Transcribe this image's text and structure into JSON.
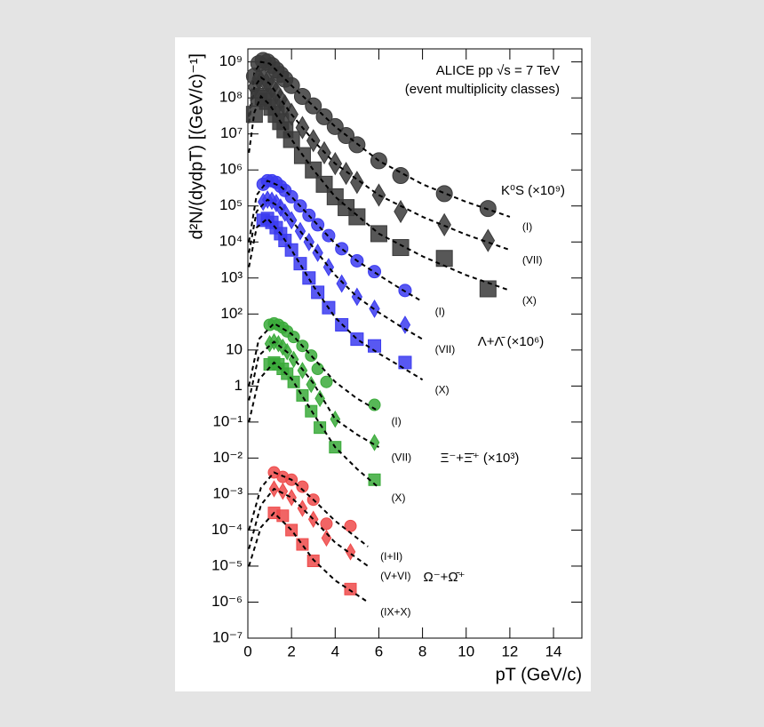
{
  "chart_data": {
    "type": "scatter",
    "annotations": [
      "ALICE pp √s = 7 TeV",
      "(event multiplicity classes)"
    ],
    "xlabel": "pT (GeV/c)",
    "ylabel": "d²N/(dydpT) [(GeV/c)⁻¹]",
    "log_y": true,
    "xlim": [
      0,
      15.3
    ],
    "ylim": [
      1e-07,
      2300000000.0
    ],
    "xticks": [
      0,
      2,
      4,
      6,
      8,
      10,
      12,
      14
    ],
    "yticks": [
      {
        "value": 1000000000.0,
        "label": "10⁹"
      },
      {
        "value": 100000000.0,
        "label": "10⁸"
      },
      {
        "value": 10000000.0,
        "label": "10⁷"
      },
      {
        "value": 1000000.0,
        "label": "10⁶"
      },
      {
        "value": 100000.0,
        "label": "10⁵"
      },
      {
        "value": 10000.0,
        "label": "10⁴"
      },
      {
        "value": 1000.0,
        "label": "10³"
      },
      {
        "value": 100.0,
        "label": "10²"
      },
      10,
      1,
      {
        "value": 0.1,
        "label": "10⁻¹"
      },
      {
        "value": 0.01,
        "label": "10⁻²"
      },
      {
        "value": 0.001,
        "label": "10⁻³"
      },
      {
        "value": 0.0001,
        "label": "10⁻⁴"
      },
      {
        "value": 1e-05,
        "label": "10⁻⁵"
      },
      {
        "value": 1e-06,
        "label": "10⁻⁶"
      },
      {
        "value": 1e-07,
        "label": "10⁻⁷"
      }
    ],
    "groups": [
      {
        "label": "K⁰S (×10⁹)",
        "color": "#3a3a3a",
        "fit_x": [
          0.05,
          0.3,
          0.6,
          1,
          2,
          3,
          4,
          6,
          8,
          10,
          12
        ],
        "series": [
          {
            "name": "(I)",
            "marker": "circle",
            "x": [
              0.3,
              0.5,
              0.7,
              0.9,
              1.1,
              1.3,
              1.5,
              1.7,
              2.0,
              2.5,
              3.0,
              3.5,
              4.0,
              4.5,
              5.0,
              6.0,
              7.0,
              9.0,
              11.0
            ],
            "values": [
              400000000.0,
              900000000.0,
              1100000000.0,
              1000000000.0,
              800000000.0,
              600000000.0,
              450000000.0,
              330000000.0,
              220000000.0,
              110000000.0,
              60000000.0,
              30000000.0,
              16000000.0,
              9000000.0,
              5000000.0,
              1800000.0,
              700000.0,
              220000.0,
              85000.0
            ],
            "fit_values": [
              30000000.0,
              500000000.0,
              1000000000.0,
              900000000.0,
              220000000.0,
              60000000.0,
              16000000.0,
              1800000.0,
              400000.0,
              130000.0,
              50000.0
            ]
          },
          {
            "name": "(VII)",
            "marker": "diamond",
            "x": [
              0.3,
              0.5,
              0.7,
              0.9,
              1.1,
              1.3,
              1.5,
              1.7,
              2.0,
              2.5,
              3.0,
              3.5,
              4.0,
              4.5,
              5.0,
              6.0,
              7.0,
              9.0,
              11.0
            ],
            "values": [
              200000000.0,
              350000000.0,
              350000000.0,
              280000000.0,
              200000000.0,
              140000000.0,
              90000000.0,
              60000000.0,
              35000000.0,
              15000000.0,
              6500000.0,
              3000000.0,
              1500000.0,
              800000.0,
              450000.0,
              200000.0,
              70000.0,
              30000.0,
              11000.0
            ],
            "fit_values": [
              20000000.0,
              200000000.0,
              370000000.0,
              250000000.0,
              35000000.0,
              6500000.0,
              1500000.0,
              200000.0,
              50000.0,
              16000.0,
              6000.0
            ]
          },
          {
            "name": "(X)",
            "marker": "square",
            "x": [
              0.3,
              0.5,
              0.7,
              0.9,
              1.1,
              1.3,
              1.5,
              1.7,
              2.0,
              2.5,
              3.0,
              3.5,
              4.0,
              4.5,
              5.0,
              6.0,
              7.0,
              9.0,
              11.0
            ],
            "values": [
              35000000.0,
              100000000.0,
              110000000.0,
              80000000.0,
              55000000.0,
              35000000.0,
              22000000.0,
              13000000.0,
              7000000.0,
              2500000.0,
              1000000.0,
              400000.0,
              180000.0,
              90000.0,
              50000.0,
              17000.0,
              7000.0,
              3500.0,
              500
            ],
            "fit_values": [
              3000000.0,
              40000000.0,
              110000000.0,
              65000000.0,
              7000000.0,
              1000000.0,
              180000.0,
              17000.0,
              4000.0,
              1200.0,
              450
            ]
          }
        ]
      },
      {
        "label": "Λ+Λ̄ (×10⁶)",
        "color": "#3b3bf0",
        "fit_x": [
          0.05,
          0.4,
          0.9,
          1.5,
          2,
          3,
          4,
          5,
          6,
          7,
          8
        ],
        "series": [
          {
            "name": "(I)",
            "marker": "circle",
            "x": [
              0.7,
              0.9,
              1.1,
              1.3,
              1.5,
              1.7,
              2.0,
              2.4,
              2.8,
              3.2,
              3.7,
              4.3,
              5.0,
              5.8,
              7.2
            ],
            "values": [
              400000.0,
              500000.0,
              500000.0,
              450000.0,
              350000.0,
              270000.0,
              180000.0,
              100000.0,
              55000.0,
              30000.0,
              15000.0,
              6500.0,
              3000.0,
              1500.0,
              450
            ],
            "fit_values": [
              10000.0,
              200000.0,
              500000.0,
              350000.0,
              180000.0,
              40000.0,
              9000.0,
              3000.0,
              1200.0,
              500,
              220
            ]
          },
          {
            "name": "(VII)",
            "marker": "diamond",
            "x": [
              0.7,
              0.9,
              1.1,
              1.3,
              1.5,
              1.7,
              2.0,
              2.4,
              2.8,
              3.2,
              3.7,
              4.3,
              5.0,
              5.8,
              7.2
            ],
            "values": [
              130000.0,
              150000.0,
              140000.0,
              120000.0,
              90000.0,
              65000.0,
              40000.0,
              20000.0,
              10000.0,
              5000.0,
              2000.0,
              700,
              300,
              140,
              50
            ],
            "fit_values": [
              5000.0,
              70000.0,
              150000.0,
              90000.0,
              40000.0,
              7000.0,
              1200.0,
              300,
              110,
              45,
              20
            ]
          },
          {
            "name": "(X)",
            "marker": "square",
            "x": [
              0.7,
              0.9,
              1.1,
              1.3,
              1.5,
              1.7,
              2.0,
              2.4,
              2.8,
              3.2,
              3.7,
              4.3,
              5.0,
              5.8,
              7.2
            ],
            "values": [
              40000.0,
              45000.0,
              35000.0,
              25000.0,
              17000.0,
              11000.0,
              6000.0,
              2500.0,
              1000.0,
              400,
              150,
              50,
              20,
              13,
              4.5
            ],
            "fit_values": [
              2000.0,
              25000.0,
              45000.0,
              17000.0,
              6000.0,
              600,
              80,
              20,
              8,
              3.5,
              1.5
            ]
          }
        ]
      },
      {
        "label": "Ξ⁻+Ξ̄⁺ (×10³)",
        "color": "#3aaa3a",
        "fit_x": [
          0.05,
          0.5,
          1.2,
          2,
          3,
          4,
          5,
          6
        ],
        "series": [
          {
            "name": "(I)",
            "marker": "circle",
            "x": [
              1.0,
              1.2,
              1.4,
              1.6,
              1.8,
              2.1,
              2.5,
              2.9,
              3.2,
              3.6,
              5.8
            ],
            "values": [
              50,
              55,
              50,
              42,
              33,
              23,
              13,
              7,
              3,
              1.3,
              0.3
            ],
            "fit_values": [
              1,
              20,
              55,
              28,
              6,
              1.3,
              0.45,
              0.2
            ]
          },
          {
            "name": "(VII)",
            "marker": "diamond",
            "x": [
              1.0,
              1.2,
              1.4,
              1.6,
              1.8,
              2.1,
              2.5,
              2.9,
              3.3,
              4.0,
              5.8
            ],
            "values": [
              15,
              17,
              15,
              12,
              9,
              5.5,
              2.7,
              1.1,
              0.45,
              0.12,
              0.027
            ],
            "fit_values": [
              0.4,
              7,
              17,
              7,
              1.2,
              0.12,
              0.045,
              0.02
            ]
          },
          {
            "name": "(X)",
            "marker": "square",
            "x": [
              1.0,
              1.2,
              1.4,
              1.6,
              1.8,
              2.1,
              2.5,
              2.9,
              3.3,
              4.0,
              5.8
            ],
            "values": [
              4,
              4.5,
              4,
              3,
              2.2,
              1.3,
              0.55,
              0.2,
              0.07,
              0.02,
              0.0025
            ],
            "fit_values": [
              0.1,
              1.5,
              4.5,
              1.6,
              0.17,
              0.02,
              0.005,
              0.0015
            ]
          }
        ]
      },
      {
        "label": "Ω⁻+Ω̄⁺",
        "color": "#ee4a4a",
        "fit_x": [
          0.05,
          0.6,
          1.2,
          2,
          3,
          4,
          5.5
        ],
        "series": [
          {
            "name": "(I+II)",
            "marker": "circle",
            "x": [
              1.2,
              1.6,
              2.0,
              2.5,
              3.0,
              3.6,
              4.7
            ],
            "values": [
              0.004,
              0.003,
              0.0025,
              0.0016,
              0.0007,
              0.00015,
              0.00013
            ],
            "fit_values": [
              0.0001,
              0.0015,
              0.004,
              0.0025,
              0.0007,
              0.00018,
              3.5e-05
            ]
          },
          {
            "name": "(V+VI)",
            "marker": "diamond",
            "x": [
              1.2,
              1.6,
              2.0,
              2.5,
              3.0,
              3.6,
              4.7
            ],
            "values": [
              0.0014,
              0.0012,
              0.0008,
              0.0004,
              0.0002,
              6e-05,
              2.5e-05
            ],
            "fit_values": [
              3e-05,
              0.0005,
              0.0014,
              0.0008,
              0.0002,
              4.5e-05,
              1e-05
            ]
          },
          {
            "name": "(IX+X)",
            "marker": "square",
            "x": [
              1.2,
              1.6,
              2.0,
              2.5,
              3.0,
              4.7
            ],
            "values": [
              0.0003,
              0.00025,
              0.0001,
              4e-05,
              1.4e-05,
              2.3e-06
            ],
            "fit_values": [
              1e-05,
              0.00012,
              0.0003,
              0.0001,
              1.5e-05,
              4e-06,
              1e-06
            ]
          }
        ]
      }
    ]
  }
}
